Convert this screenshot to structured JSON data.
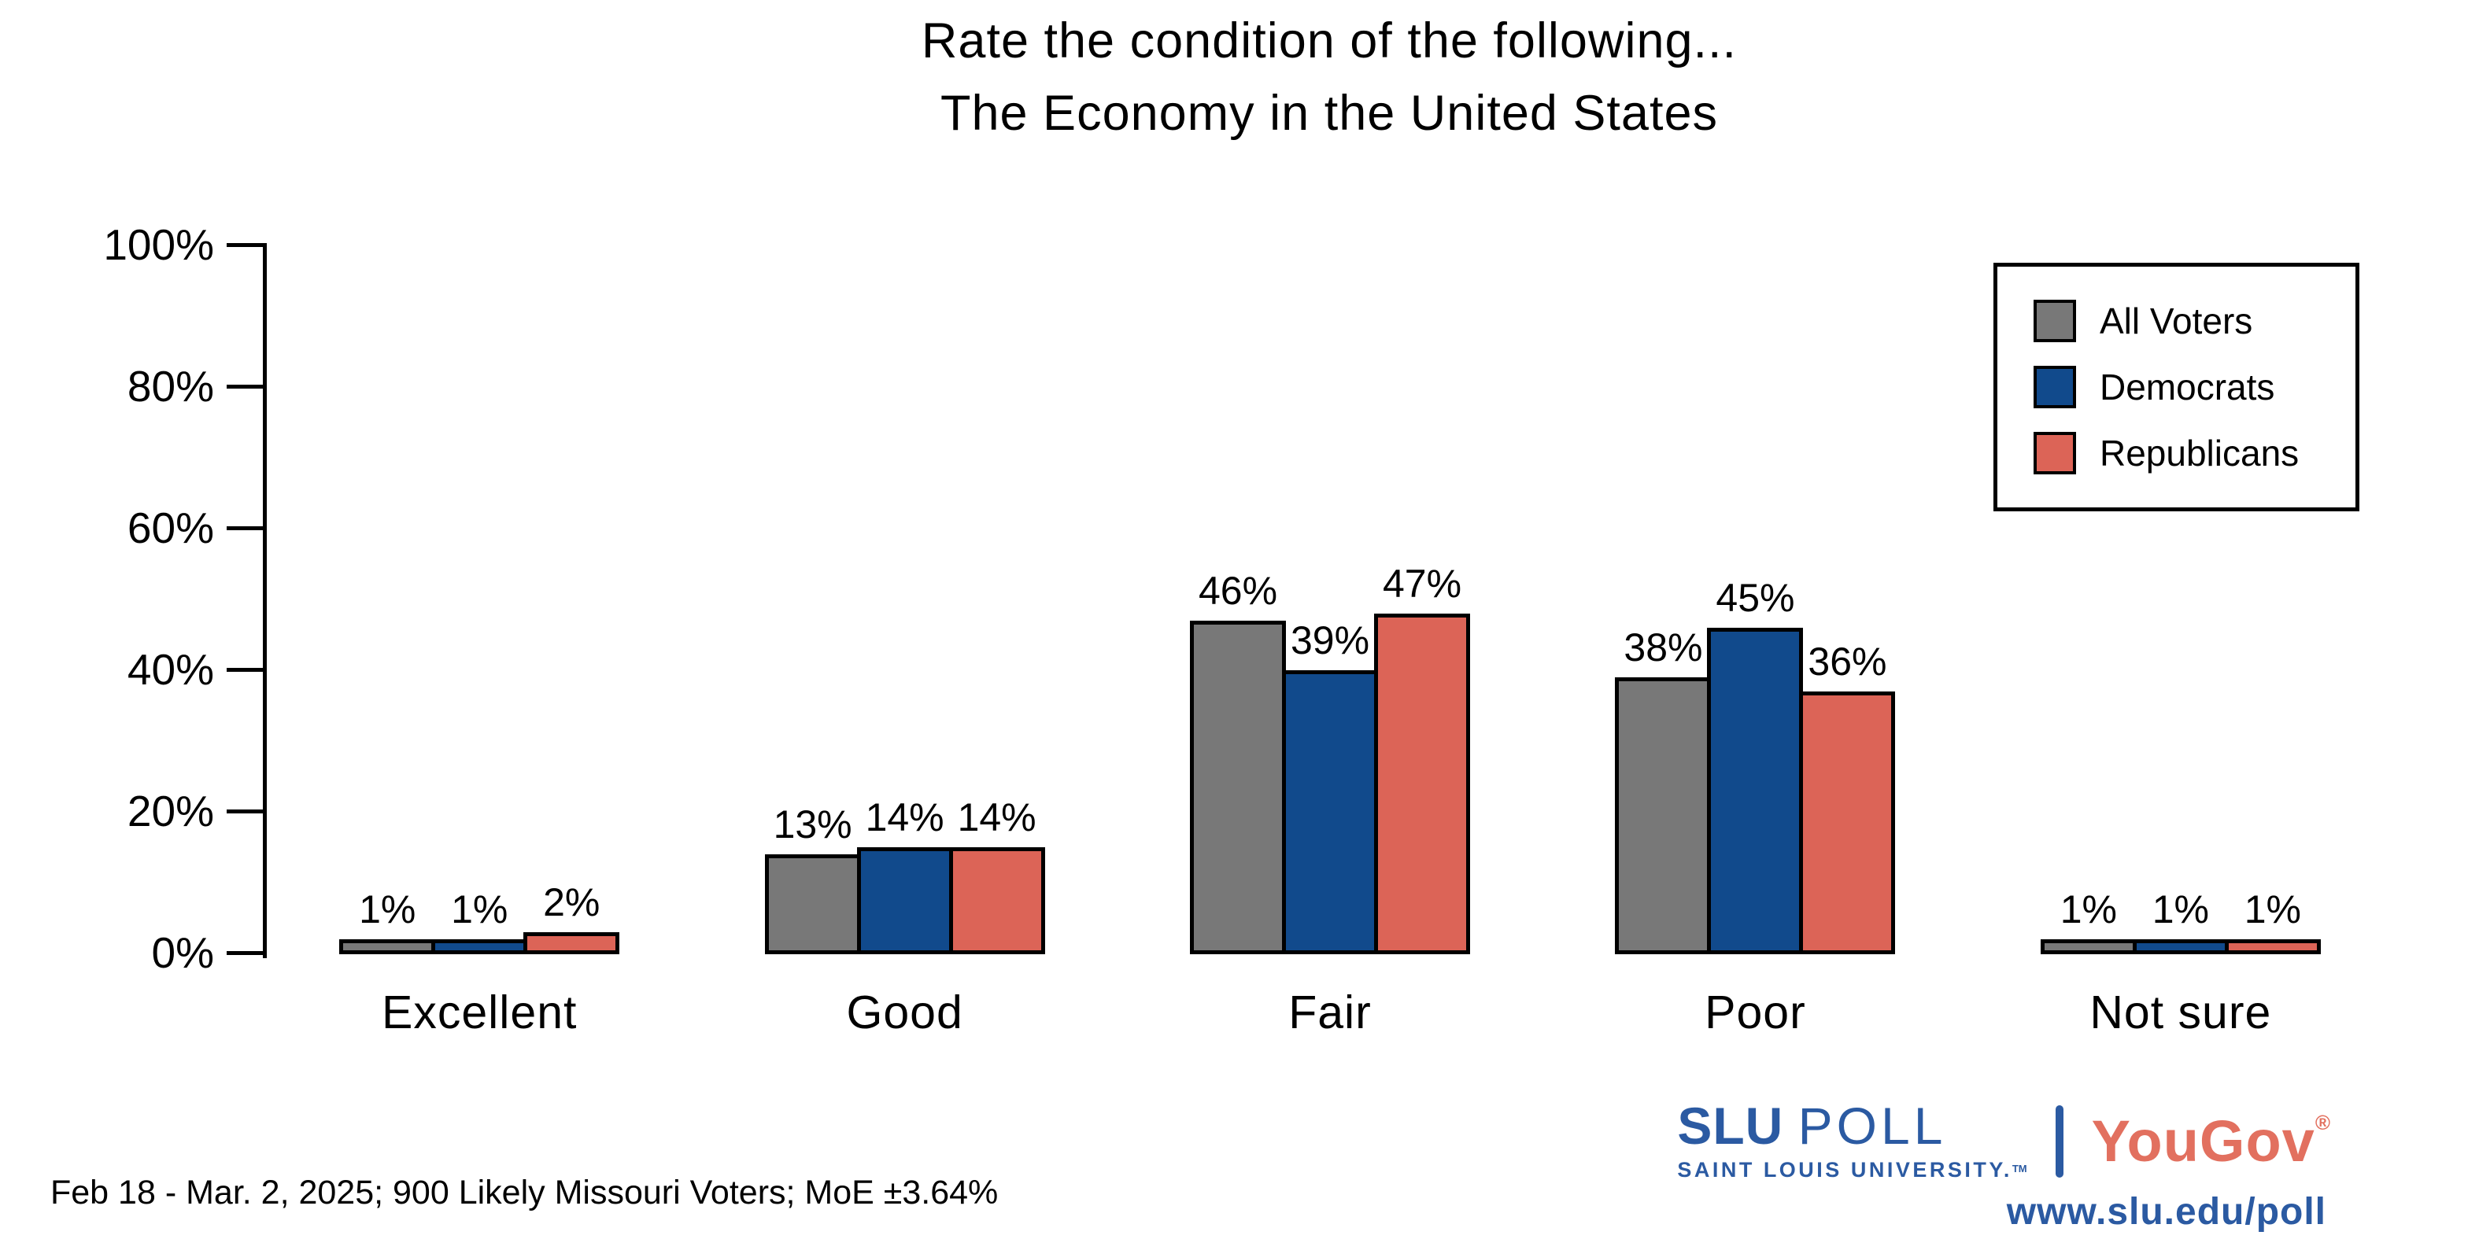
{
  "chart_data": {
    "type": "bar",
    "title_line1": "Rate the condition of the following...",
    "title_line2": "The Economy in the United States",
    "categories": [
      "Excellent",
      "Good",
      "Fair",
      "Poor",
      "Not sure"
    ],
    "series": [
      {
        "name": "All Voters",
        "color": "#787878",
        "values": [
          1,
          13,
          46,
          38,
          1
        ]
      },
      {
        "name": "Democrats",
        "color": "#114A8C",
        "values": [
          1,
          14,
          39,
          45,
          1
        ]
      },
      {
        "name": "Republicans",
        "color": "#DC6457",
        "values": [
          2,
          14,
          47,
          36,
          1
        ]
      }
    ],
    "value_suffix": "%",
    "ylabel": "",
    "xlabel": "",
    "ylim": [
      0,
      100
    ],
    "y_ticks": [
      0,
      20,
      40,
      60,
      80,
      100
    ],
    "y_tick_suffix": "%",
    "grid": false,
    "legend_position": "top-right",
    "bar_outline_color": "#000000"
  },
  "footer": {
    "note": "Feb 18 - Mar. 2, 2025; 900 Likely Missouri Voters; MoE ±3.64%"
  },
  "logos": {
    "slu_bold": "SLU",
    "slu_light": "POLL",
    "slu_sub": "SAINT LOUIS UNIVERSITY.",
    "slu_tm": "TM",
    "yougov": "YouGov",
    "yougov_reg": "®",
    "url": "www.slu.edu/poll"
  },
  "colors": {
    "slu_blue": "#2B5AA2",
    "yougov_red": "#E2705F",
    "text": "#000000",
    "background": "#FFFFFF"
  }
}
